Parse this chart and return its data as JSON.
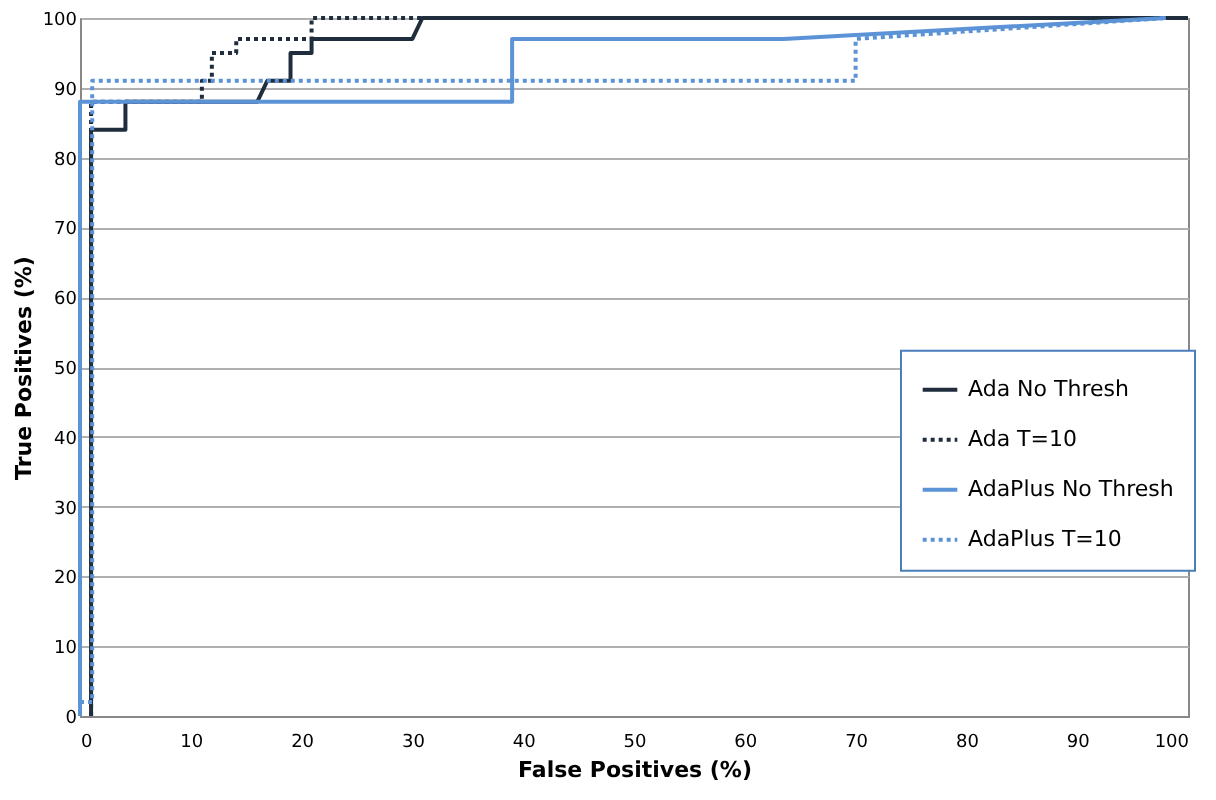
{
  "chart_data": {
    "type": "line",
    "xlabel": "False Positives (%)",
    "ylabel": "True Positives (%)",
    "xlim": [
      0,
      100
    ],
    "ylim": [
      0,
      100
    ],
    "xticks": [
      0,
      10,
      20,
      30,
      40,
      50,
      60,
      70,
      80,
      90,
      100
    ],
    "yticks": [
      0,
      10,
      20,
      30,
      40,
      50,
      60,
      70,
      80,
      90,
      100
    ],
    "grid": "y",
    "legend": "right",
    "marker": "none",
    "series": [
      {
        "name": "Ada No Thresh",
        "color": "#1f2d3d",
        "line_style": "solid",
        "x": [
          1,
          1,
          1,
          1,
          4.1,
          4.1,
          16,
          16.9,
          19,
          19,
          20.9,
          20.9,
          30,
          30.9,
          100
        ],
        "values": [
          0,
          62,
          62,
          84,
          84,
          88,
          88,
          91,
          91,
          95,
          95,
          97,
          97,
          100,
          100
        ]
      },
      {
        "name": "Ada T=10",
        "color": "#1f2d3d",
        "line_style": "dotted",
        "x": [
          1,
          1,
          11,
          11,
          11.9,
          11.9,
          14.1,
          14.1,
          20.9,
          20.9,
          100
        ],
        "values": [
          0,
          88,
          88,
          91,
          91,
          95,
          95,
          97,
          97,
          100,
          100
        ]
      },
      {
        "name": "AdaPlus No Thresh",
        "color": "#5b93d6",
        "line_style": "solid",
        "x": [
          0,
          0,
          39,
          39,
          63.5,
          98
        ],
        "values": [
          0,
          88,
          88,
          97,
          97,
          100
        ]
      },
      {
        "name": "AdaPlus T=10",
        "color": "#5b93d6",
        "line_style": "dotted",
        "x": [
          0,
          1.1,
          1.1,
          70,
          70,
          98
        ],
        "values": [
          2,
          2,
          91,
          91,
          97,
          100
        ]
      }
    ]
  }
}
